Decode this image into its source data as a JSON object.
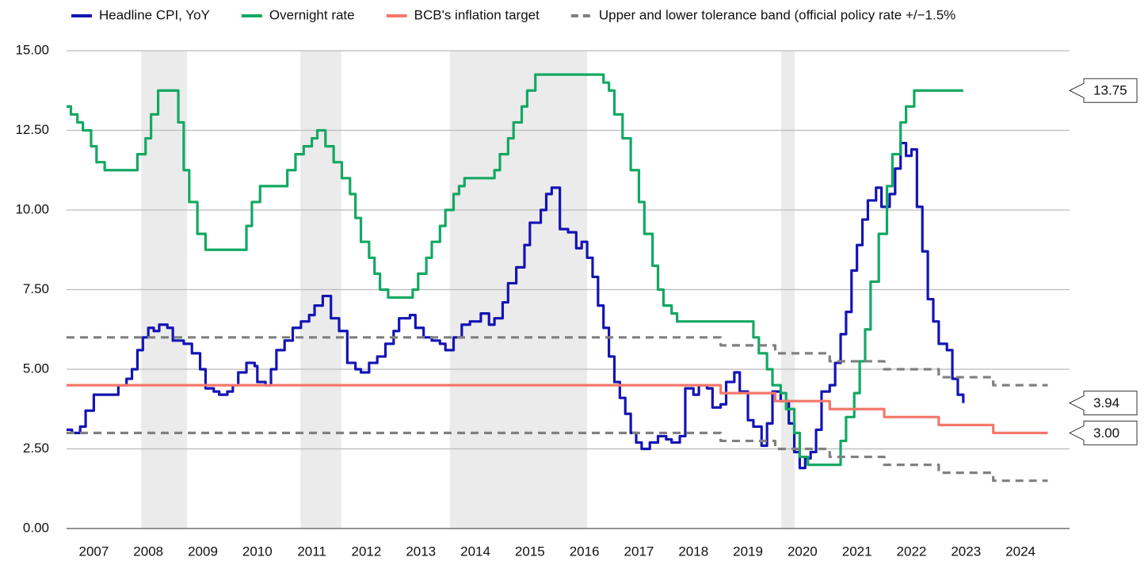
{
  "chart_data": {
    "type": "line",
    "step": true,
    "xlim": [
      2007,
      2025.4
    ],
    "ylim": [
      0,
      15
    ],
    "xticks": [
      {
        "value": 2007.5,
        "label": "2007"
      },
      {
        "value": 2008.5,
        "label": "2008"
      },
      {
        "value": 2009.5,
        "label": "2009"
      },
      {
        "value": 2010.5,
        "label": "2010"
      },
      {
        "value": 2011.5,
        "label": "2011"
      },
      {
        "value": 2012.5,
        "label": "2012"
      },
      {
        "value": 2013.5,
        "label": "2013"
      },
      {
        "value": 2014.5,
        "label": "2014"
      },
      {
        "value": 2015.5,
        "label": "2015"
      },
      {
        "value": 2016.5,
        "label": "2016"
      },
      {
        "value": 2017.5,
        "label": "2017"
      },
      {
        "value": 2018.5,
        "label": "2018"
      },
      {
        "value": 2019.5,
        "label": "2019"
      },
      {
        "value": 2020.5,
        "label": "2020"
      },
      {
        "value": 2021.5,
        "label": "2021"
      },
      {
        "value": 2022.5,
        "label": "2022"
      },
      {
        "value": 2023.5,
        "label": "2023"
      },
      {
        "value": 2024.5,
        "label": "2024"
      }
    ],
    "yticks": [
      {
        "value": 0,
        "label": "0.00"
      },
      {
        "value": 2.5,
        "label": "2.50"
      },
      {
        "value": 5,
        "label": "5.00"
      },
      {
        "value": 7.5,
        "label": "7.50"
      },
      {
        "value": 10,
        "label": "10.00"
      },
      {
        "value": 12.5,
        "label": "12.50"
      },
      {
        "value": 15,
        "label": "15.00"
      }
    ],
    "grid": true,
    "legend": "top",
    "shaded_periods": [
      [
        2008.37,
        2009.21
      ],
      [
        2011.29,
        2012.04
      ],
      [
        2014.03,
        2016.55
      ],
      [
        2020.11,
        2020.36
      ]
    ],
    "shade_color": "#ebebeb",
    "series": [
      {
        "name": "Headline CPI, YoY",
        "color": "#1414b4",
        "x": [
          2007.0,
          2007.1,
          2007.25,
          2007.35,
          2007.5,
          2007.8,
          2007.95,
          2008.1,
          2008.2,
          2008.3,
          2008.4,
          2008.5,
          2008.6,
          2008.7,
          2008.85,
          2008.95,
          2009.15,
          2009.3,
          2009.45,
          2009.55,
          2009.7,
          2009.8,
          2009.95,
          2010.05,
          2010.15,
          2010.3,
          2010.45,
          2010.5,
          2010.65,
          2010.75,
          2010.85,
          2011.0,
          2011.15,
          2011.3,
          2011.45,
          2011.55,
          2011.7,
          2011.85,
          2012.0,
          2012.15,
          2012.3,
          2012.4,
          2012.55,
          2012.7,
          2012.85,
          2013.0,
          2013.1,
          2013.3,
          2013.4,
          2013.55,
          2013.7,
          2013.85,
          2013.95,
          2014.1,
          2014.25,
          2014.4,
          2014.6,
          2014.75,
          2014.85,
          2015.0,
          2015.1,
          2015.25,
          2015.4,
          2015.5,
          2015.7,
          2015.8,
          2015.9,
          2016.05,
          2016.2,
          2016.35,
          2016.45,
          2016.55,
          2016.65,
          2016.75,
          2016.85,
          2016.95,
          2017.05,
          2017.15,
          2017.25,
          2017.35,
          2017.45,
          2017.55,
          2017.7,
          2017.85,
          2018.0,
          2018.1,
          2018.25,
          2018.35,
          2018.5,
          2018.6,
          2018.75,
          2018.85,
          2019.0,
          2019.1,
          2019.25,
          2019.35,
          2019.5,
          2019.6,
          2019.75,
          2019.85,
          2019.95,
          2020.1,
          2020.25,
          2020.35,
          2020.45,
          2020.55,
          2020.65,
          2020.75,
          2020.85,
          2021.0,
          2021.1,
          2021.2,
          2021.3,
          2021.4,
          2021.5,
          2021.6,
          2021.7,
          2021.85,
          2021.95,
          2022.1,
          2022.2,
          2022.3,
          2022.4,
          2022.5,
          2022.6,
          2022.7,
          2022.8,
          2022.9,
          2023.0,
          2023.15,
          2023.25,
          2023.35,
          2023.45
        ],
        "values": [
          3.1,
          3.0,
          3.2,
          3.7,
          4.2,
          4.2,
          4.5,
          4.7,
          5.0,
          5.6,
          6.0,
          6.3,
          6.2,
          6.4,
          6.3,
          5.9,
          5.8,
          5.5,
          5.0,
          4.4,
          4.3,
          4.2,
          4.3,
          4.5,
          4.9,
          5.2,
          5.1,
          4.6,
          4.5,
          5.0,
          5.6,
          5.9,
          6.3,
          6.5,
          6.7,
          7.0,
          7.3,
          6.6,
          6.2,
          5.2,
          5.0,
          4.9,
          5.2,
          5.4,
          5.8,
          6.2,
          6.6,
          6.7,
          6.3,
          6.0,
          5.9,
          5.8,
          5.6,
          6.0,
          6.4,
          6.5,
          6.75,
          6.4,
          6.6,
          7.1,
          7.7,
          8.2,
          8.9,
          9.6,
          10.0,
          10.5,
          10.7,
          9.4,
          9.3,
          8.8,
          9.0,
          8.5,
          7.9,
          7.0,
          6.3,
          5.4,
          4.6,
          4.1,
          3.6,
          3.0,
          2.7,
          2.5,
          2.7,
          2.9,
          2.8,
          2.7,
          2.9,
          4.4,
          4.2,
          4.5,
          4.4,
          3.8,
          3.9,
          4.6,
          4.9,
          4.3,
          3.4,
          3.2,
          2.6,
          3.3,
          4.3,
          4.0,
          3.3,
          2.4,
          1.9,
          2.2,
          2.4,
          3.1,
          4.3,
          4.5,
          5.2,
          6.1,
          6.8,
          8.1,
          8.9,
          9.7,
          10.3,
          10.7,
          10.1,
          10.5,
          11.3,
          12.1,
          11.7,
          11.9,
          10.1,
          8.7,
          7.2,
          6.5,
          5.8,
          5.6,
          4.7,
          4.2,
          3.94
        ]
      },
      {
        "name": "Overnight rate",
        "color": "#13a862",
        "x": [
          2007.0,
          2007.08,
          2007.2,
          2007.3,
          2007.45,
          2007.55,
          2007.7,
          2008.3,
          2008.45,
          2008.55,
          2008.68,
          2009.05,
          2009.15,
          2009.25,
          2009.4,
          2009.55,
          2010.3,
          2010.4,
          2010.55,
          2011.05,
          2011.2,
          2011.35,
          2011.5,
          2011.6,
          2011.75,
          2011.9,
          2012.05,
          2012.2,
          2012.3,
          2012.4,
          2012.55,
          2012.65,
          2012.75,
          2012.9,
          2013.35,
          2013.45,
          2013.6,
          2013.7,
          2013.85,
          2013.95,
          2014.1,
          2014.2,
          2014.3,
          2014.85,
          2014.95,
          2015.1,
          2015.2,
          2015.35,
          2015.45,
          2015.6,
          2016.85,
          2016.95,
          2017.05,
          2017.2,
          2017.35,
          2017.5,
          2017.6,
          2017.75,
          2017.85,
          2017.95,
          2018.1,
          2018.2,
          2019.6,
          2019.7,
          2019.85,
          2019.95,
          2020.1,
          2020.2,
          2020.35,
          2020.45,
          2020.6,
          2021.2,
          2021.3,
          2021.45,
          2021.55,
          2021.65,
          2021.75,
          2021.9,
          2022.05,
          2022.15,
          2022.3,
          2022.4,
          2022.55,
          2023.45
        ],
        "values": [
          13.25,
          13.0,
          12.75,
          12.5,
          12.0,
          11.5,
          11.25,
          11.75,
          12.25,
          13.0,
          13.75,
          12.75,
          11.25,
          10.25,
          9.25,
          8.75,
          9.5,
          10.25,
          10.75,
          11.25,
          11.75,
          12.0,
          12.25,
          12.5,
          12.0,
          11.5,
          11.0,
          10.5,
          9.75,
          9.0,
          8.5,
          8.0,
          7.5,
          7.25,
          7.5,
          8.0,
          8.5,
          9.0,
          9.5,
          10.0,
          10.5,
          10.75,
          11.0,
          11.25,
          11.75,
          12.25,
          12.75,
          13.25,
          13.75,
          14.25,
          14.0,
          13.75,
          13.0,
          12.25,
          11.25,
          10.25,
          9.25,
          8.25,
          7.5,
          7.0,
          6.75,
          6.5,
          6.0,
          5.5,
          5.0,
          4.5,
          4.25,
          3.75,
          3.0,
          2.25,
          2.0,
          2.75,
          3.5,
          4.25,
          5.25,
          6.25,
          7.75,
          9.25,
          10.75,
          11.75,
          12.75,
          13.25,
          13.75,
          13.75
        ]
      },
      {
        "name": "BCB's inflation target",
        "color": "#f4786a",
        "x": [
          2007.0,
          2019.0,
          2020.0,
          2021.0,
          2022.0,
          2023.0,
          2024.0,
          2025.0
        ],
        "values": [
          4.5,
          4.25,
          4.0,
          3.75,
          3.5,
          3.25,
          3.0,
          3.0
        ]
      },
      {
        "name": "Upper and lower tolerance band (official policy rate +/−1.5%",
        "color": "#808080",
        "dashed": true,
        "x": [
          2007.0,
          2019.0,
          2020.0,
          2021.0,
          2022.0,
          2023.0,
          2024.0,
          2025.0
        ],
        "values": [
          6.0,
          5.75,
          5.5,
          5.25,
          5.0,
          4.75,
          4.5,
          4.5
        ],
        "lower": [
          3.0,
          2.75,
          2.5,
          2.25,
          2.0,
          1.75,
          1.5,
          1.5
        ]
      }
    ],
    "callouts": [
      {
        "value": 13.75,
        "label": "13.75"
      },
      {
        "value": 3.94,
        "label": "3.94"
      },
      {
        "value": 3.0,
        "label": "3.00"
      }
    ]
  }
}
